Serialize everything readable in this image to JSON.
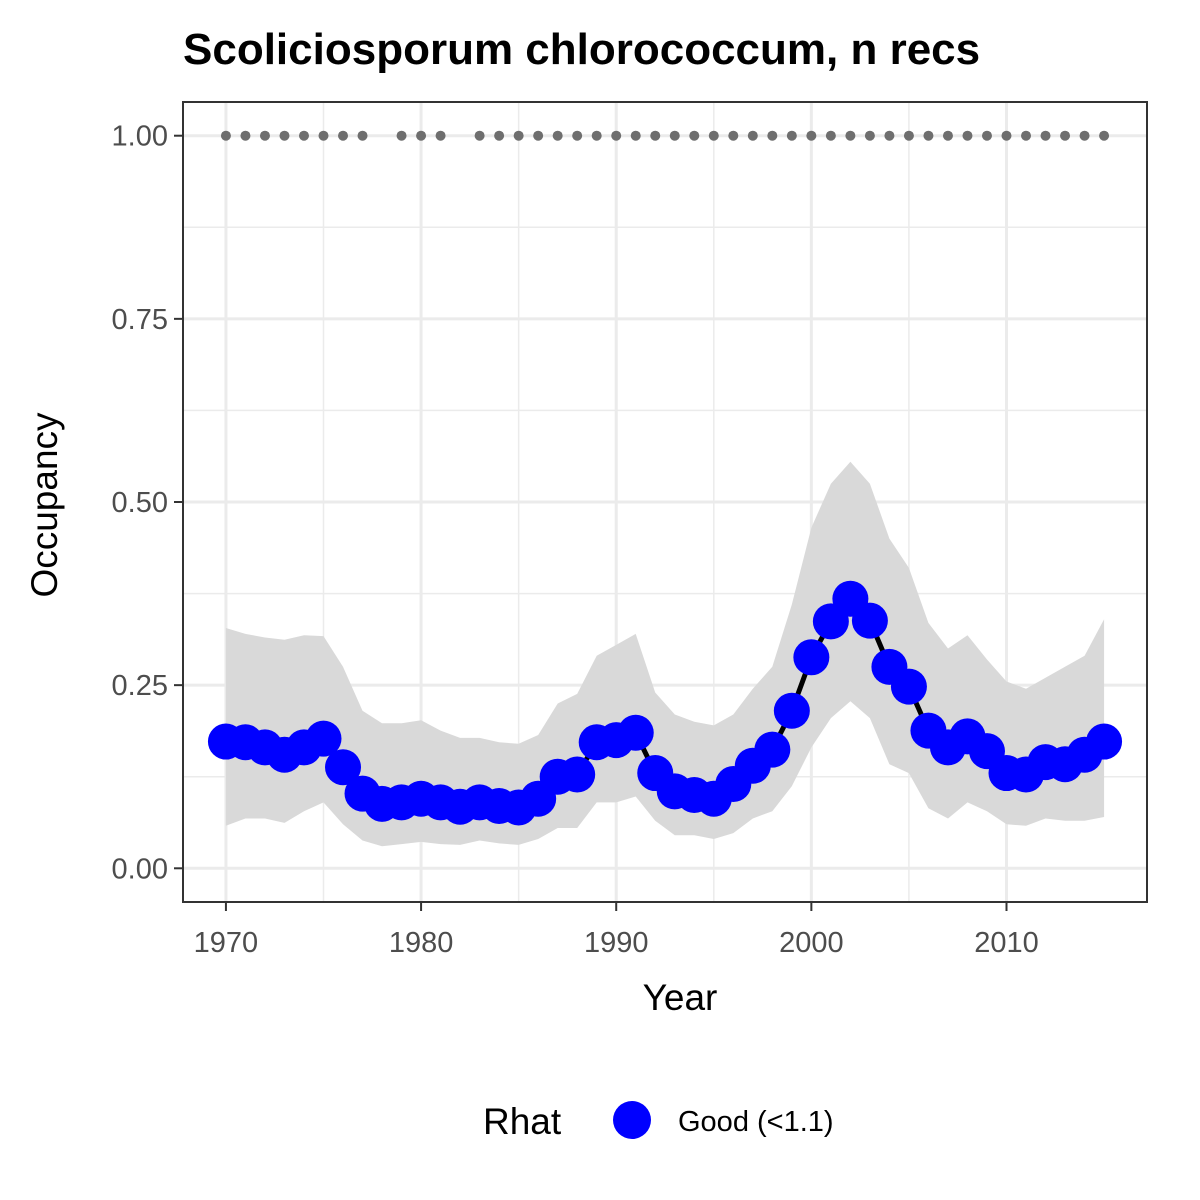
{
  "chart_data": {
    "type": "line",
    "title": "Scoliciosporum chlorococcum, n recs",
    "xlabel": "Year",
    "ylabel": "Occupancy",
    "xlim": [
      1967.8,
      2017.2
    ],
    "ylim": [
      -0.046,
      1.046
    ],
    "x_ticks": [
      1970,
      1980,
      1990,
      2000,
      2010
    ],
    "x_tick_labels": [
      "1970",
      "1980",
      "1990",
      "2000",
      "2010"
    ],
    "y_ticks": [
      0,
      0.25,
      0.5,
      0.75,
      1.0
    ],
    "y_tick_labels": [
      "0.00",
      "0.25",
      "0.50",
      "0.75",
      "1.00"
    ],
    "grid": true,
    "legend": {
      "title": "Rhat",
      "position": "bottom",
      "entries": [
        {
          "label": "Good (<1.1)",
          "color": "#0000ff"
        }
      ]
    },
    "colors": {
      "points": "#0000ff",
      "line": "#000000",
      "ribbon": "#d9d9d9",
      "records": "#6e6e6e"
    },
    "series": [
      {
        "name": "Good (<1.1)",
        "x": [
          1970,
          1971,
          1972,
          1973,
          1974,
          1975,
          1976,
          1977,
          1978,
          1979,
          1980,
          1981,
          1982,
          1983,
          1984,
          1985,
          1986,
          1987,
          1988,
          1989,
          1990,
          1991,
          1992,
          1993,
          1994,
          1995,
          1996,
          1997,
          1998,
          1999,
          2000,
          2001,
          2002,
          2003,
          2004,
          2005,
          2006,
          2007,
          2008,
          2009,
          2010,
          2011,
          2012,
          2013,
          2014,
          2015
        ],
        "y": [
          0.173,
          0.172,
          0.165,
          0.155,
          0.165,
          0.177,
          0.138,
          0.102,
          0.088,
          0.09,
          0.095,
          0.09,
          0.084,
          0.09,
          0.085,
          0.083,
          0.095,
          0.125,
          0.128,
          0.172,
          0.175,
          0.185,
          0.13,
          0.105,
          0.1,
          0.095,
          0.115,
          0.14,
          0.162,
          0.215,
          0.288,
          0.337,
          0.368,
          0.338,
          0.275,
          0.248,
          0.188,
          0.165,
          0.18,
          0.16,
          0.13,
          0.128,
          0.145,
          0.142,
          0.155,
          0.173
        ],
        "lower": [
          0.058,
          0.068,
          0.068,
          0.062,
          0.078,
          0.09,
          0.06,
          0.038,
          0.03,
          0.033,
          0.036,
          0.033,
          0.032,
          0.038,
          0.034,
          0.032,
          0.04,
          0.055,
          0.055,
          0.09,
          0.09,
          0.098,
          0.065,
          0.045,
          0.045,
          0.04,
          0.048,
          0.068,
          0.078,
          0.112,
          0.165,
          0.205,
          0.228,
          0.205,
          0.142,
          0.13,
          0.082,
          0.068,
          0.09,
          0.078,
          0.06,
          0.058,
          0.068,
          0.065,
          0.065,
          0.07
        ],
        "upper": [
          0.328,
          0.32,
          0.315,
          0.312,
          0.318,
          0.317,
          0.275,
          0.215,
          0.198,
          0.198,
          0.202,
          0.188,
          0.178,
          0.178,
          0.172,
          0.17,
          0.182,
          0.225,
          0.238,
          0.29,
          0.305,
          0.32,
          0.24,
          0.21,
          0.2,
          0.195,
          0.21,
          0.245,
          0.275,
          0.36,
          0.465,
          0.525,
          0.555,
          0.525,
          0.45,
          0.41,
          0.335,
          0.3,
          0.318,
          0.285,
          0.255,
          0.245,
          0.26,
          0.275,
          0.29,
          0.34
        ]
      }
    ],
    "records": {
      "y": 1.0,
      "x": [
        1970,
        1971,
        1972,
        1973,
        1974,
        1975,
        1976,
        1977,
        1979,
        1980,
        1981,
        1983,
        1984,
        1985,
        1986,
        1987,
        1988,
        1989,
        1990,
        1991,
        1992,
        1993,
        1994,
        1995,
        1996,
        1997,
        1998,
        1999,
        2000,
        2001,
        2002,
        2003,
        2004,
        2005,
        2006,
        2007,
        2008,
        2009,
        2010,
        2011,
        2012,
        2013,
        2014,
        2015
      ]
    }
  }
}
